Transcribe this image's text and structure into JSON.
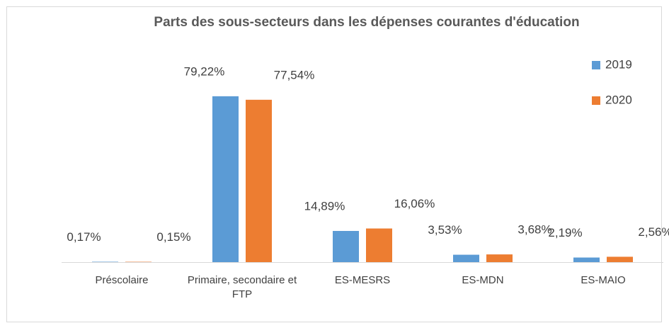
{
  "chart_data": {
    "type": "bar",
    "title": "Parts des sous-secteurs dans les dépenses courantes d'éducation",
    "categories": [
      "Préscolaire",
      "Primaire, secondaire et FTP",
      "ES-MESRS",
      "ES-MDN",
      "ES-MAIO"
    ],
    "series": [
      {
        "name": "2019",
        "color": "#5b9bd5",
        "values": [
          0.17,
          79.22,
          14.89,
          3.53,
          2.19
        ],
        "value_labels": [
          "0,17%",
          "79,22%",
          "14,89%",
          "3,53%",
          "2,19%"
        ]
      },
      {
        "name": "2020",
        "color": "#ed7d31",
        "values": [
          0.15,
          77.54,
          16.06,
          3.68,
          2.56
        ],
        "value_labels": [
          "0,15%",
          "77,54%",
          "16,06%",
          "3,68%",
          "2,56%"
        ]
      }
    ],
    "ylim": [
      0,
      90
    ],
    "legend": "right"
  }
}
